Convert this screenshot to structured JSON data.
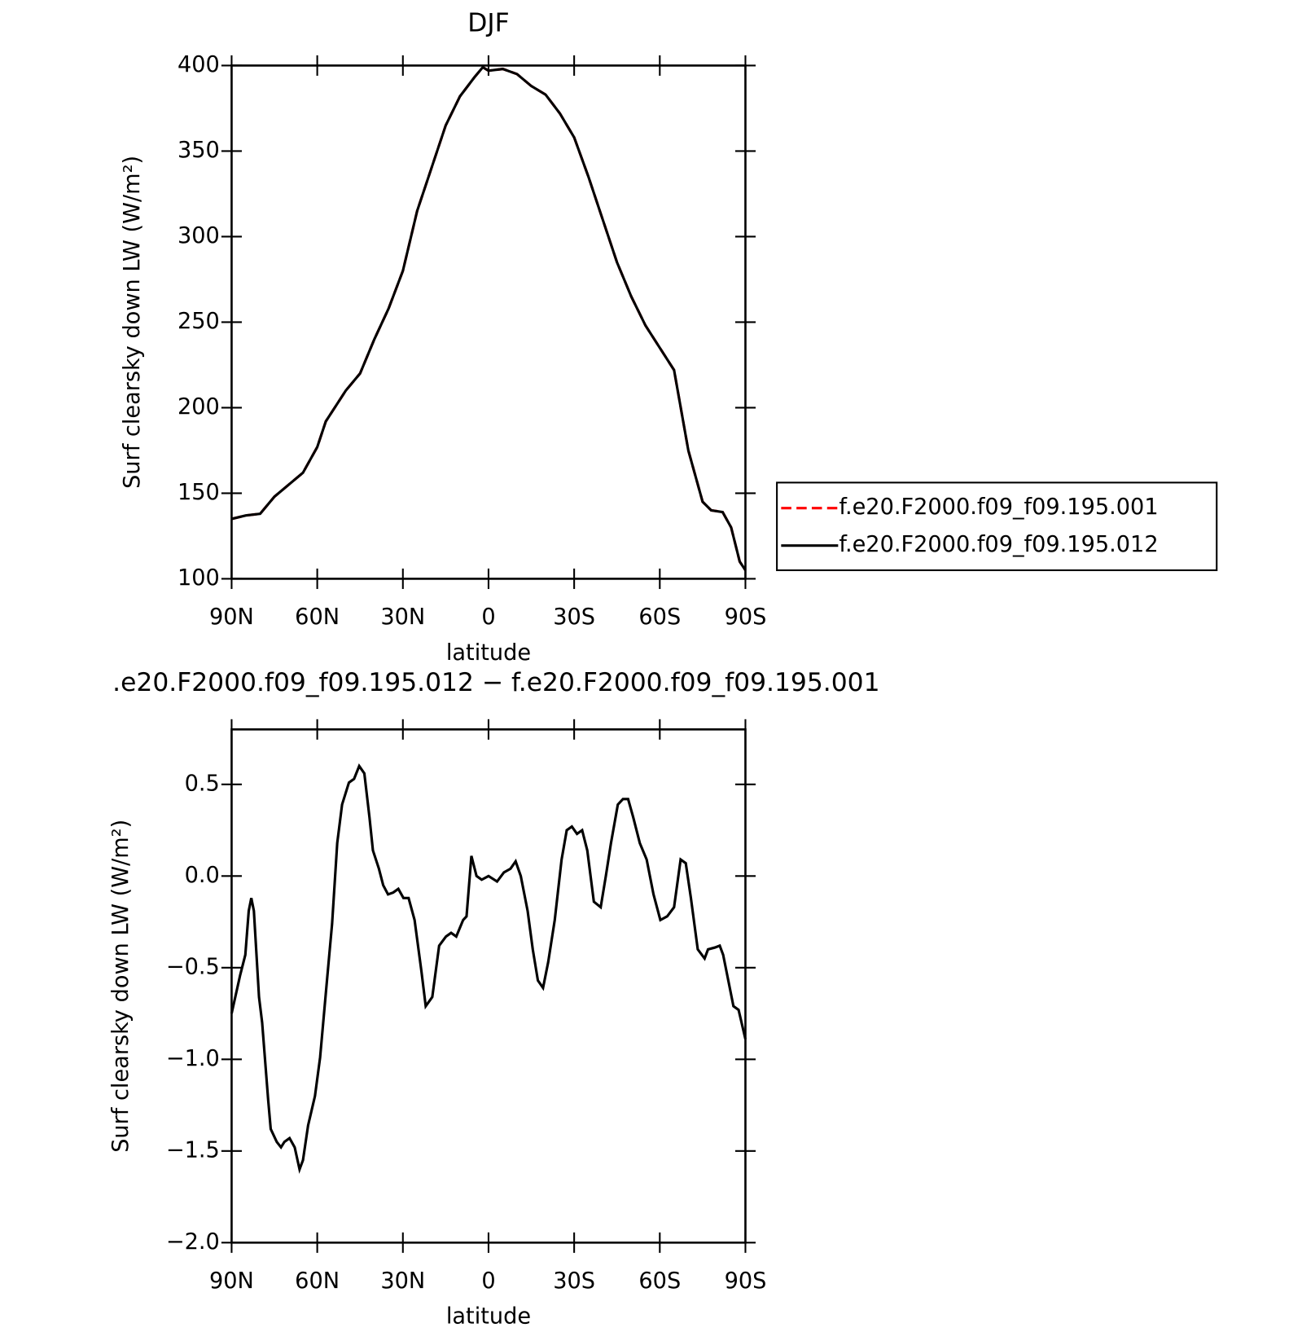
{
  "chart_data": [
    {
      "type": "line",
      "title": "DJF",
      "xlabel": "latitude",
      "ylabel": "Surf clearsky down LW (W/m²)",
      "x": [
        90,
        85,
        80,
        75,
        70,
        65,
        60,
        57,
        50,
        45,
        40,
        35,
        30,
        25,
        20,
        15,
        10,
        5,
        2,
        0,
        -5,
        -10,
        -15,
        -20,
        -25,
        -30,
        -35,
        -40,
        -45,
        -50,
        -55,
        -60,
        -65,
        -70,
        -75,
        -78,
        -82,
        -85,
        -88,
        -90
      ],
      "series": [
        {
          "name": "f.e20.F2000.f09_f09.195.001",
          "color": "#ff0000",
          "linestyle": "dashed",
          "values": [
            135,
            137,
            138,
            148,
            155,
            162,
            177,
            192,
            210,
            220,
            240,
            258,
            280,
            315,
            340,
            365,
            382,
            393,
            399,
            397,
            398,
            395,
            388,
            383,
            372,
            358,
            335,
            310,
            285,
            265,
            248,
            235,
            222,
            175,
            145,
            140,
            139,
            130,
            110,
            105
          ]
        },
        {
          "name": "f.e20.F2000.f09_f09.195.012",
          "color": "#000000",
          "linestyle": "solid",
          "values": [
            135,
            137,
            138,
            148,
            155,
            162,
            177,
            192,
            210,
            220,
            240,
            258,
            280,
            315,
            340,
            365,
            382,
            393,
            399,
            397,
            398,
            395,
            388,
            383,
            372,
            358,
            335,
            310,
            285,
            265,
            248,
            235,
            222,
            175,
            145,
            140,
            139,
            130,
            110,
            105
          ]
        }
      ],
      "xlim": [
        90,
        -90
      ],
      "xticks": [
        {
          "value": 90,
          "label": "90N"
        },
        {
          "value": 60,
          "label": "60N"
        },
        {
          "value": 30,
          "label": "30N"
        },
        0,
        {
          "value": -30,
          "label": "30S"
        },
        {
          "value": -60,
          "label": "60S"
        },
        {
          "value": -90,
          "label": "90S"
        }
      ],
      "ylim": [
        100,
        400
      ],
      "yticks": [
        100,
        150,
        200,
        250,
        300,
        350,
        400
      ],
      "legend": "right"
    },
    {
      "type": "line",
      "title": ".e20.F2000.f09_f09.195.012 − f.e20.F2000.f09_f09.195.001",
      "xlabel": "latitude",
      "ylabel": "Surf clearsky down LW (W/m²)",
      "x": [
        90,
        87,
        85.2,
        84,
        83.1,
        82.2,
        80.4,
        79.3,
        77.2,
        76.3,
        74.2,
        72.7,
        71.5,
        69.7,
        67.9,
        66.2,
        65,
        63.2,
        60.8,
        59,
        56.6,
        54.8,
        53,
        51.3,
        48.9,
        47.1,
        45.3,
        43.5,
        41.7,
        40.5,
        38.4,
        36.9,
        35.2,
        33.4,
        31.6,
        29.8,
        28,
        25.9,
        23.5,
        22,
        19.7,
        17.3,
        14.9,
        13.1,
        11.3,
        8.9,
        7.7,
        6,
        4.2,
        2.4,
        0,
        -3,
        -5.4,
        -7.7,
        -9.5,
        -11.3,
        -13.7,
        -15.5,
        -17.3,
        -19.1,
        -20.9,
        -23.2,
        -25.6,
        -27.4,
        -29.2,
        -31,
        -32.8,
        -34.6,
        -36.9,
        -39.3,
        -41.1,
        -42.9,
        -45.3,
        -47.1,
        -48.9,
        -50.7,
        -53,
        -55.4,
        -57.8,
        -60.2,
        -62.6,
        -65,
        -67.3,
        -69.1,
        -70.9,
        -73.3,
        -75.7,
        -76.9,
        -79.3,
        -81,
        -82.2,
        -84,
        -85.8,
        -87.6,
        -90
      ],
      "series": [
        {
          "color": "#000000",
          "linestyle": "solid",
          "values": [
            -0.75,
            -0.54,
            -0.43,
            -0.19,
            -0.12,
            -0.19,
            -0.66,
            -0.8,
            -1.22,
            -1.38,
            -1.45,
            -1.48,
            -1.45,
            -1.43,
            -1.48,
            -1.6,
            -1.55,
            -1.36,
            -1.2,
            -0.99,
            -0.57,
            -0.26,
            0.18,
            0.39,
            0.51,
            0.53,
            0.6,
            0.56,
            0.32,
            0.14,
            0.04,
            -0.05,
            -0.1,
            -0.09,
            -0.07,
            -0.12,
            -0.12,
            -0.24,
            -0.52,
            -0.71,
            -0.66,
            -0.38,
            -0.33,
            -0.31,
            -0.33,
            -0.24,
            -0.22,
            0.11,
            0,
            -0.02,
            0,
            -0.03,
            0.02,
            0.04,
            0.08,
            0,
            -0.19,
            -0.4,
            -0.57,
            -0.61,
            -0.47,
            -0.24,
            0.09,
            0.25,
            0.27,
            0.23,
            0.25,
            0.14,
            -0.14,
            -0.17,
            0,
            0.18,
            0.39,
            0.42,
            0.42,
            0.32,
            0.18,
            0.09,
            -0.1,
            -0.24,
            -0.22,
            -0.17,
            0.09,
            0.07,
            -0.12,
            -0.4,
            -0.45,
            -0.4,
            -0.39,
            -0.38,
            -0.43,
            -0.57,
            -0.71,
            -0.73,
            -0.89
          ]
        }
      ],
      "xlim": [
        90,
        -90
      ],
      "xticks": [
        {
          "value": 90,
          "label": "90N"
        },
        {
          "value": 60,
          "label": "60N"
        },
        {
          "value": 30,
          "label": "30N"
        },
        0,
        {
          "value": -30,
          "label": "30S"
        },
        {
          "value": -60,
          "label": "60S"
        },
        {
          "value": -90,
          "label": "90S"
        }
      ],
      "ylim": [
        -2,
        0.8
      ],
      "yticks": [
        {
          "value": -2,
          "label": "−2.0"
        },
        {
          "value": -1.5,
          "label": "−1.5"
        },
        {
          "value": -1,
          "label": "−1.0"
        },
        {
          "value": -0.5,
          "label": "−0.5"
        },
        {
          "value": 0,
          "label": "0.0"
        },
        0.5
      ]
    }
  ]
}
